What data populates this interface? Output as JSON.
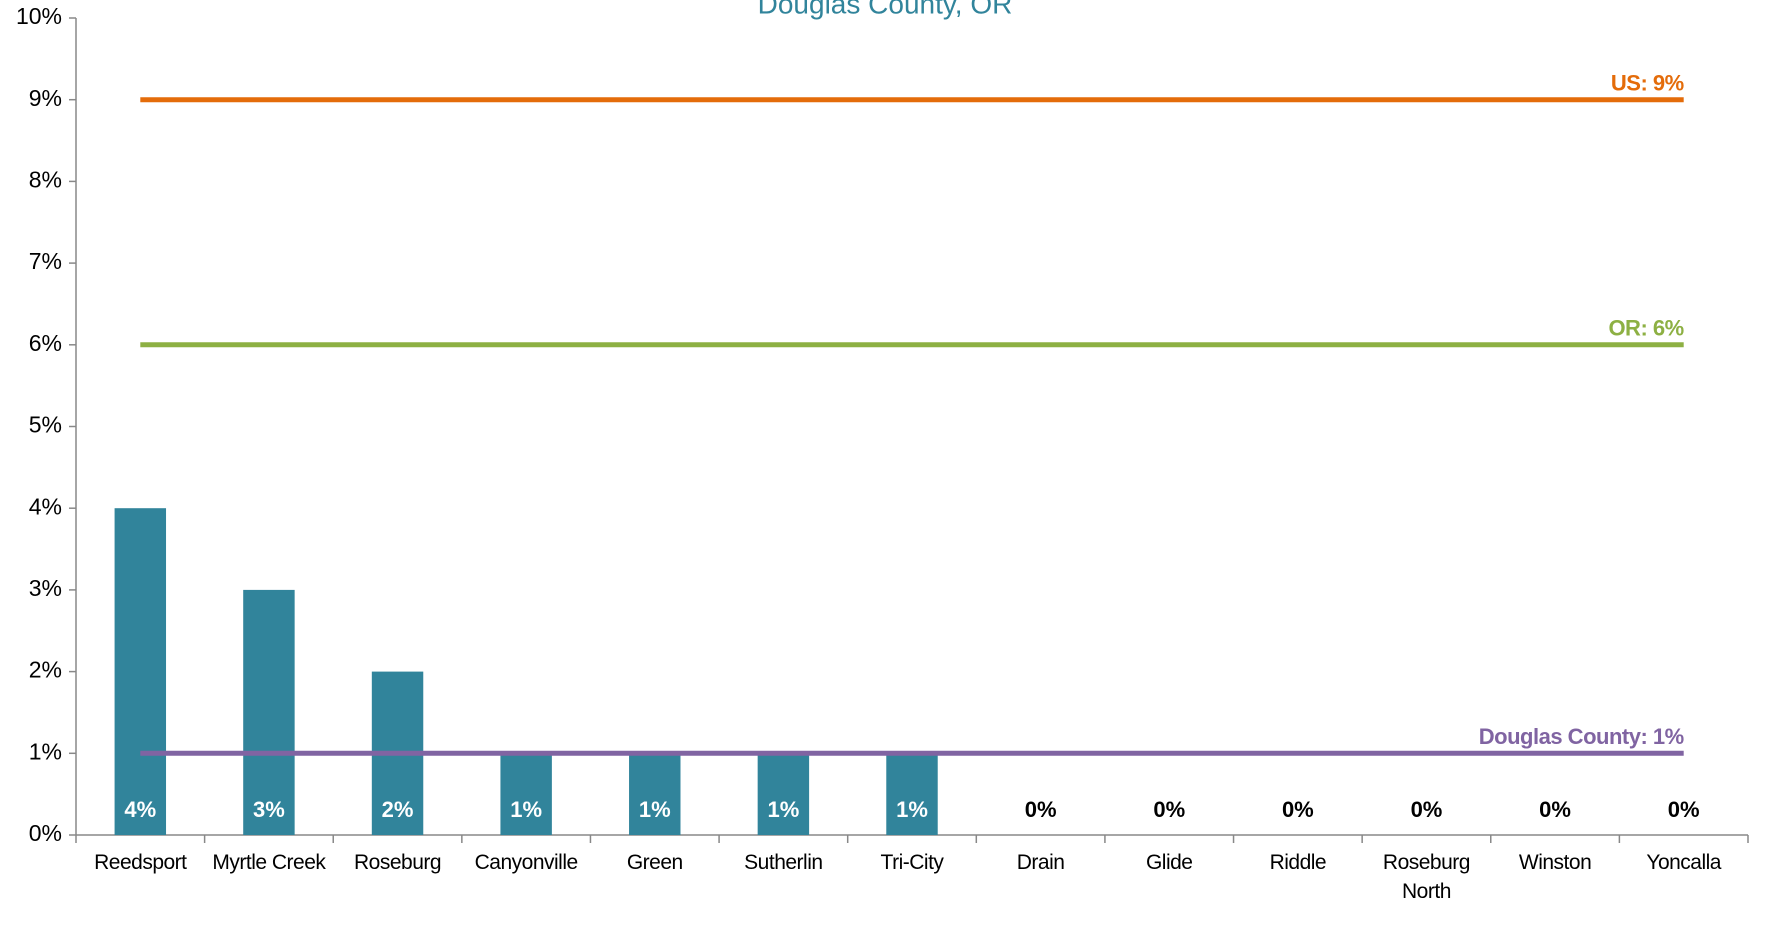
{
  "chart_data": {
    "type": "bar",
    "title": "Douglas County, OR",
    "categories": [
      "Reedsport",
      "Myrtle Creek",
      "Roseburg",
      "Canyonville",
      "Green",
      "Sutherlin",
      "Tri-City",
      "Drain",
      "Glide",
      "Riddle",
      "Roseburg North",
      "Winston",
      "Yoncalla"
    ],
    "values": [
      4,
      3,
      2,
      1,
      1,
      1,
      1,
      0,
      0,
      0,
      0,
      0,
      0
    ],
    "value_labels": [
      "4%",
      "3%",
      "2%",
      "1%",
      "1%",
      "1%",
      "1%",
      "0%",
      "0%",
      "0%",
      "0%",
      "0%",
      "0%"
    ],
    "color": "#31849b",
    "ylim": [
      0,
      10
    ],
    "yticks": [
      {
        "value": 0,
        "label": "0%"
      },
      {
        "value": 1,
        "label": "1%"
      },
      {
        "value": 2,
        "label": "2%"
      },
      {
        "value": 3,
        "label": "3%"
      },
      {
        "value": 4,
        "label": "4%"
      },
      {
        "value": 5,
        "label": "5%"
      },
      {
        "value": 6,
        "label": "6%"
      },
      {
        "value": 7,
        "label": "7%"
      },
      {
        "value": 8,
        "label": "8%"
      },
      {
        "value": 9,
        "label": "9%"
      },
      {
        "value": 10,
        "label": "10%"
      }
    ],
    "grid": false,
    "reference_lines": [
      {
        "label": "US: 9%",
        "value": 9,
        "color": "#e46c0a"
      },
      {
        "label": "OR: 6%",
        "value": 6,
        "color": "#8db043"
      },
      {
        "label": "Douglas County: 1%",
        "value": 1,
        "color": "#8064a2"
      }
    ]
  }
}
